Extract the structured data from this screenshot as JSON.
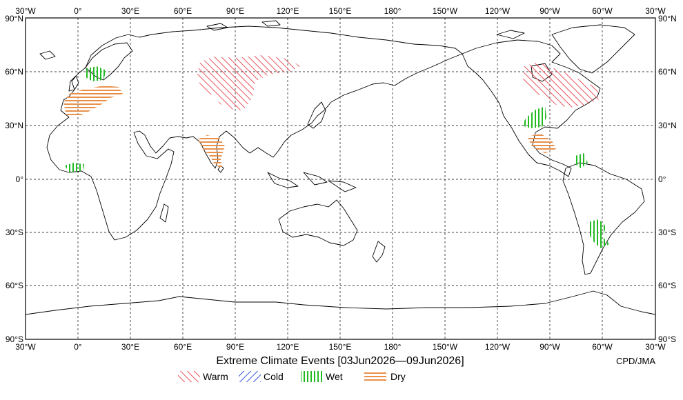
{
  "map": {
    "title": "Extreme Climate Events [03Jun2026—09Jun2026]",
    "credit": "CPD/JMA",
    "lon_labels": [
      "30°W",
      "0°",
      "30°E",
      "60°E",
      "90°E",
      "120°E",
      "150°E",
      "180°",
      "150°W",
      "120°W",
      "90°W",
      "60°W",
      "30°W"
    ],
    "lat_labels": [
      "90°N",
      "60°N",
      "30°N",
      "0°",
      "30°S",
      "60°S",
      "90°S"
    ],
    "legend": [
      {
        "label": "Warm",
        "color": "#e8505a"
      },
      {
        "label": "Cold",
        "color": "#3355dd"
      },
      {
        "label": "Wet",
        "color": "#22bb22"
      },
      {
        "label": "Dry",
        "color": "#e8904a"
      }
    ],
    "colors": {
      "warm": "#e8505a",
      "cold": "#3355dd",
      "wet": "#22bb22",
      "dry": "#e8904a",
      "land": "#000000",
      "grid": "#000000"
    }
  }
}
